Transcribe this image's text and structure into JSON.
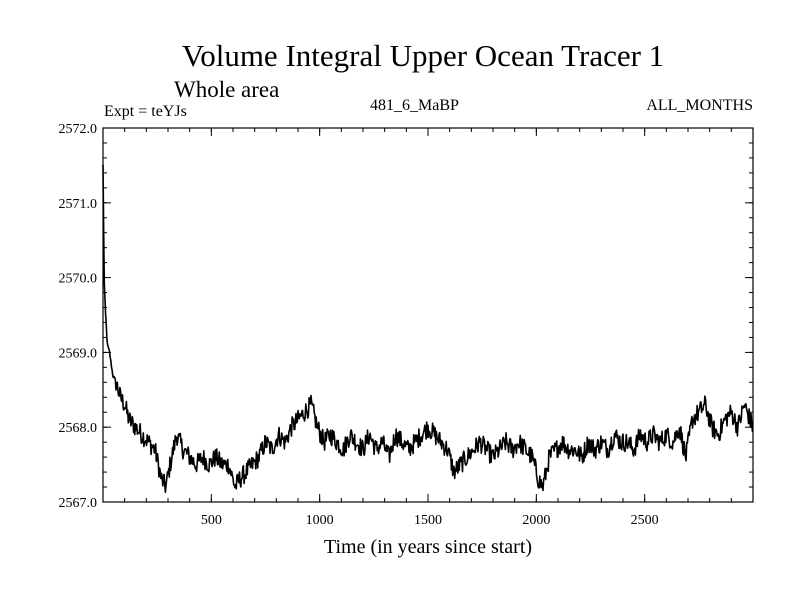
{
  "header": {
    "title": "Volume Integral Upper Ocean Tracer 1",
    "subtitle": "Whole area",
    "experiment": "Expt = teYJs",
    "period": "481_6_MaBP",
    "months": "ALL_MONTHS"
  },
  "chart_data": {
    "type": "line",
    "title": "Volume Integral Upper Ocean Tracer 1",
    "subtitle": "Whole area",
    "xlabel": "Time (in years since start)",
    "ylabel": "",
    "xlim": [
      0,
      3000
    ],
    "ylim": [
      2567.0,
      2572.0
    ],
    "xticks": [
      500,
      1000,
      1500,
      2000,
      2500
    ],
    "xtick_labels": [
      "500",
      "1000",
      "1500",
      "2000",
      "2500"
    ],
    "yticks": [
      2567.0,
      2568.0,
      2569.0,
      2570.0,
      2571.0,
      2572.0
    ],
    "ytick_labels": [
      "2567.0",
      "2568.0",
      "2569.0",
      "2570.0",
      "2571.0",
      "2572.0"
    ],
    "grid": false,
    "series": [
      {
        "name": "Tracer 1",
        "color": "#000000",
        "x": [
          0,
          5,
          10,
          20,
          30,
          45,
          60,
          80,
          100,
          120,
          150,
          180,
          210,
          240,
          270,
          290,
          310,
          340,
          370,
          400,
          430,
          460,
          490,
          520,
          550,
          580,
          610,
          630,
          660,
          690,
          720,
          750,
          780,
          810,
          840,
          870,
          900,
          930,
          960,
          990,
          1020,
          1050,
          1080,
          1110,
          1140,
          1170,
          1200,
          1230,
          1260,
          1290,
          1320,
          1350,
          1380,
          1410,
          1440,
          1470,
          1500,
          1530,
          1560,
          1590,
          1620,
          1650,
          1680,
          1710,
          1740,
          1770,
          1800,
          1830,
          1860,
          1890,
          1920,
          1950,
          1980,
          2010,
          2030,
          2060,
          2090,
          2120,
          2150,
          2180,
          2210,
          2240,
          2270,
          2300,
          2330,
          2360,
          2390,
          2420,
          2450,
          2480,
          2510,
          2540,
          2570,
          2600,
          2630,
          2660,
          2690,
          2720,
          2750,
          2780,
          2810,
          2840,
          2870,
          2900,
          2930,
          2960,
          3000
        ],
        "y": [
          2571.5,
          2570.0,
          2569.6,
          2569.1,
          2569.0,
          2568.7,
          2568.6,
          2568.4,
          2568.3,
          2568.1,
          2568.0,
          2567.9,
          2567.8,
          2567.7,
          2567.3,
          2567.2,
          2567.5,
          2567.9,
          2567.7,
          2567.6,
          2567.5,
          2567.6,
          2567.5,
          2567.6,
          2567.5,
          2567.5,
          2567.2,
          2567.3,
          2567.4,
          2567.5,
          2567.6,
          2567.8,
          2567.7,
          2567.9,
          2567.8,
          2568.0,
          2568.1,
          2568.2,
          2568.3,
          2568.0,
          2567.8,
          2567.9,
          2567.8,
          2567.7,
          2567.9,
          2567.8,
          2567.7,
          2567.9,
          2567.7,
          2567.8,
          2567.6,
          2567.9,
          2567.8,
          2567.7,
          2567.8,
          2567.9,
          2568.0,
          2567.9,
          2567.8,
          2567.7,
          2567.4,
          2567.5,
          2567.6,
          2567.7,
          2567.8,
          2567.7,
          2567.6,
          2567.7,
          2567.8,
          2567.7,
          2567.8,
          2567.7,
          2567.6,
          2567.3,
          2567.2,
          2567.6,
          2567.7,
          2567.8,
          2567.7,
          2567.7,
          2567.6,
          2567.8,
          2567.7,
          2567.8,
          2567.7,
          2567.9,
          2567.8,
          2567.8,
          2567.7,
          2567.9,
          2567.8,
          2567.9,
          2567.8,
          2567.9,
          2567.8,
          2568.0,
          2567.6,
          2568.1,
          2568.2,
          2568.3,
          2568.0,
          2567.9,
          2568.1,
          2568.2,
          2568.0,
          2568.3,
          2568.0
        ]
      }
    ]
  }
}
